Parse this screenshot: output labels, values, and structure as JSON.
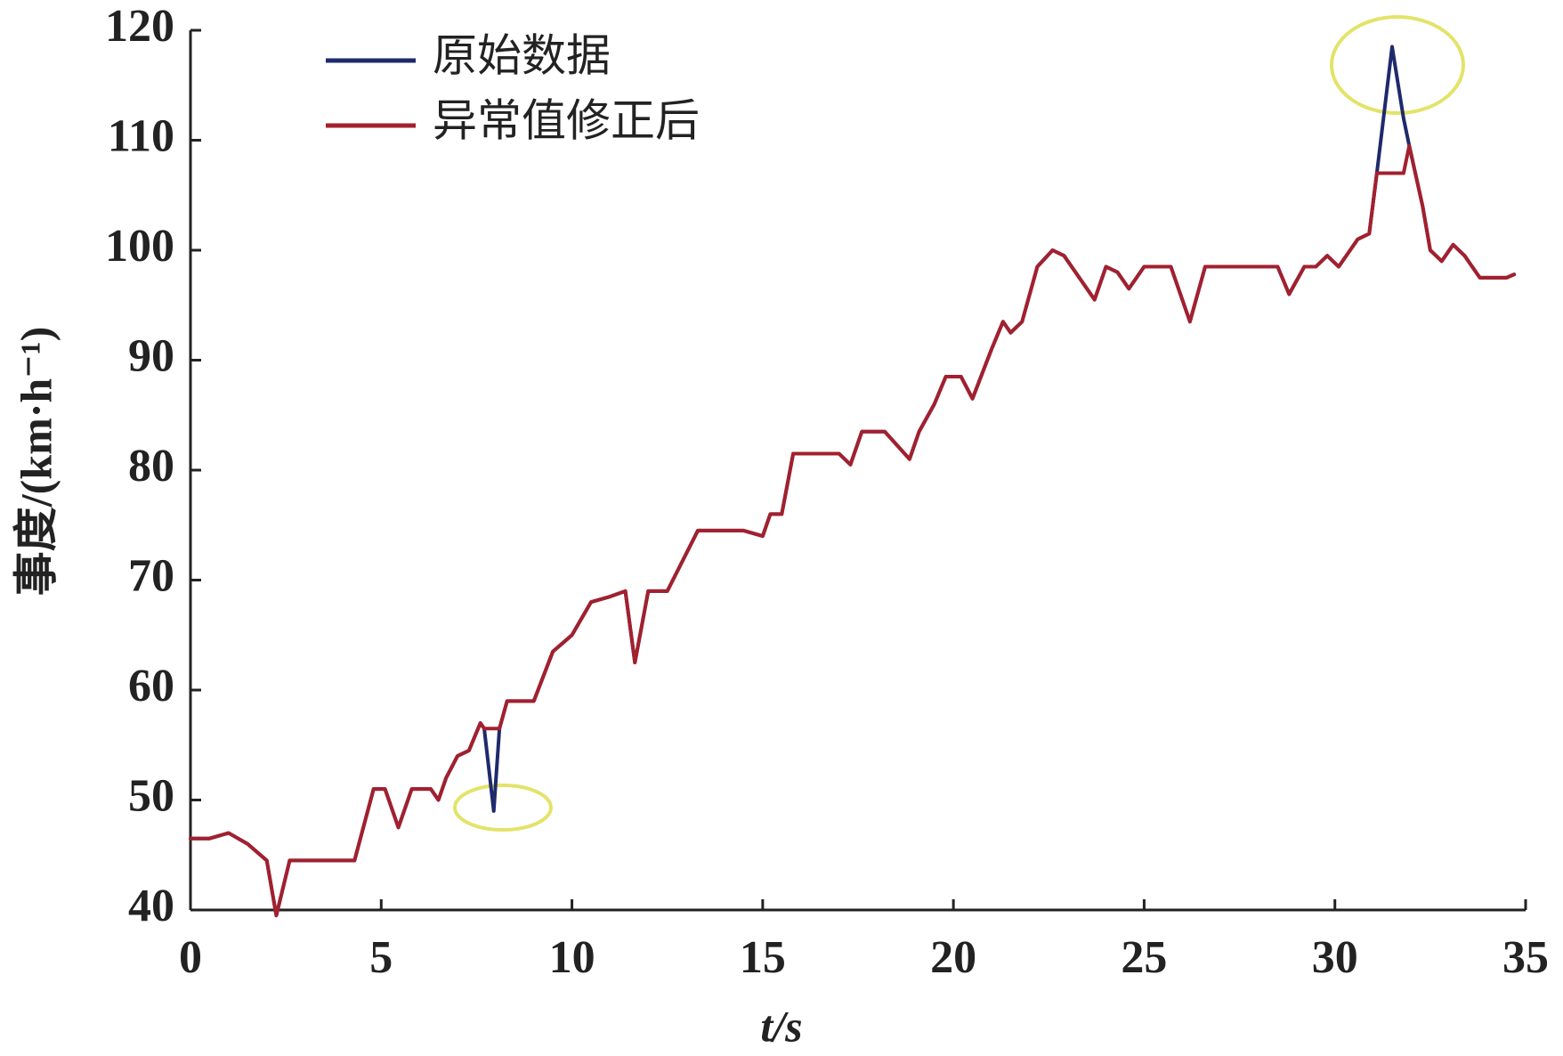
{
  "chart_data": {
    "type": "line",
    "xlabel": "t/s",
    "ylabel": "事度/(km·h⁻¹)",
    "x": [
      0,
      0.5,
      1,
      1.5,
      2,
      2.25,
      2.6,
      3,
      4,
      4.3,
      4.8,
      5.1,
      5.45,
      5.8,
      6.3,
      6.5,
      6.7,
      7,
      7.3,
      7.6,
      7.7,
      7.95,
      8.1,
      8.3,
      9,
      9.5,
      10,
      10.5,
      11,
      11.4,
      11.65,
      12,
      12.5,
      13.3,
      14.5,
      15,
      15.2,
      15.5,
      15.8,
      16.5,
      17,
      17.3,
      17.6,
      18.2,
      18.85,
      19.1,
      19.5,
      19.8,
      20.2,
      20.5,
      21,
      21.3,
      21.5,
      21.8,
      22.2,
      22.6,
      22.9,
      23.3,
      23.7,
      24,
      24.3,
      24.6,
      25,
      25.7,
      26.2,
      26.6,
      27.5,
      28.5,
      28.8,
      29.2,
      29.5,
      29.8,
      30.1,
      30.6,
      30.9,
      31.1,
      31.5,
      31.8,
      31.95,
      32.3,
      32.5,
      32.8,
      33.1,
      33.4,
      33.8,
      34.2,
      34.5,
      34.7
    ],
    "series": [
      {
        "name": "原始数据",
        "color": "#1f2a6b",
        "values": [
          46.5,
          46.5,
          47,
          46,
          44.5,
          39.5,
          44.5,
          44.5,
          44.5,
          44.5,
          51,
          51,
          47.5,
          51,
          51,
          50,
          52,
          54,
          54.5,
          57,
          56.5,
          49,
          56.5,
          59,
          59,
          63.5,
          65,
          68,
          68.5,
          69,
          62.5,
          69,
          69,
          74.5,
          74.5,
          74,
          76,
          76,
          81.5,
          81.5,
          81.5,
          80.5,
          83.5,
          83.5,
          81,
          83.5,
          86,
          88.5,
          88.5,
          86.5,
          91,
          93.5,
          92.5,
          93.5,
          98.5,
          100,
          99.5,
          97.5,
          95.5,
          98.5,
          98,
          96.5,
          98.5,
          98.5,
          93.5,
          98.5,
          98.5,
          98.5,
          96,
          98.5,
          98.5,
          99.5,
          98.5,
          101,
          101.5,
          107,
          118.5,
          112,
          109.5,
          104,
          100,
          99,
          100.5,
          99.5,
          97.5,
          97.5,
          97.5,
          97.8
        ]
      },
      {
        "name": "异常值修正后",
        "color": "#a3202e",
        "values": [
          46.5,
          46.5,
          47,
          46,
          44.5,
          39.5,
          44.5,
          44.5,
          44.5,
          44.5,
          51,
          51,
          47.5,
          51,
          51,
          50,
          52,
          54,
          54.5,
          57,
          56.5,
          56.5,
          56.5,
          59,
          59,
          63.5,
          65,
          68,
          68.5,
          69,
          62.5,
          69,
          69,
          74.5,
          74.5,
          74,
          76,
          76,
          81.5,
          81.5,
          81.5,
          80.5,
          83.5,
          83.5,
          81,
          83.5,
          86,
          88.5,
          88.5,
          86.5,
          91,
          93.5,
          92.5,
          93.5,
          98.5,
          100,
          99.5,
          97.5,
          95.5,
          98.5,
          98,
          96.5,
          98.5,
          98.5,
          93.5,
          98.5,
          98.5,
          98.5,
          96,
          98.5,
          98.5,
          99.5,
          98.5,
          101,
          101.5,
          107,
          107,
          107,
          109.5,
          104,
          100,
          99,
          100.5,
          99.5,
          97.5,
          97.5,
          97.5,
          97.8
        ]
      }
    ],
    "xlim": [
      0,
      35
    ],
    "xticks": [
      0,
      5,
      10,
      15,
      20,
      25,
      30,
      35
    ],
    "ylim": [
      40,
      120
    ],
    "yticks": [
      40,
      50,
      60,
      70,
      80,
      90,
      100,
      110,
      120
    ],
    "legend": "upper left"
  }
}
